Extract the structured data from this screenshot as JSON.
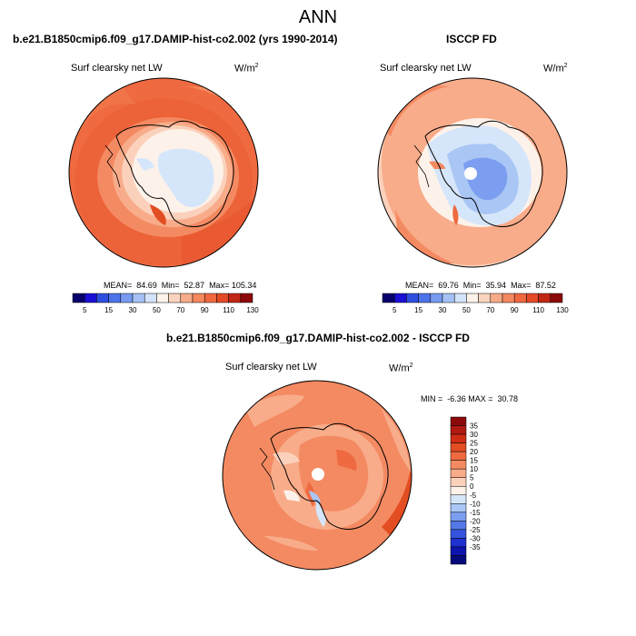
{
  "figure": {
    "title": "ANN",
    "left_panel": {
      "header": "b.e21.B1850cmip6.f09_g17.DAMIP-hist-co2.002 (yrs 1990-2014)",
      "variable": "Surf clearsky net LW",
      "units_base": "W/m",
      "units_exp": "2",
      "stats": "MEAN=  84.69  Min=  52.87  Max= 105.34",
      "stat_values": {
        "mean": 84.69,
        "min": 52.87,
        "max": 105.34
      },
      "colorbar_labels": [
        "5",
        "15",
        "30",
        "50",
        "70",
        "90",
        "110",
        "130"
      ]
    },
    "right_panel": {
      "header": "ISCCP FD",
      "variable": "Surf clearsky net LW",
      "units_base": "W/m",
      "units_exp": "2",
      "stats": "MEAN=  69.76  Min=  35.94  Max=  87.52",
      "stat_values": {
        "mean": 69.76,
        "min": 35.94,
        "max": 87.52
      },
      "colorbar_labels": [
        "5",
        "15",
        "30",
        "50",
        "70",
        "90",
        "110",
        "130"
      ]
    },
    "bottom_panel": {
      "header": "b.e21.B1850cmip6.f09_g17.DAMIP-hist-co2.002 - ISCCP FD",
      "variable": "Surf clearsky net LW",
      "units_base": "W/m",
      "units_exp": "2",
      "stats": "MIN =  -6.36 MAX =  30.78",
      "stat_values": {
        "min": -6.36,
        "max": 30.78
      },
      "colorbar_labels": [
        "35",
        "30",
        "25",
        "20",
        "15",
        "10",
        "5",
        "0",
        "-5",
        "-10",
        "-15",
        "-20",
        "-25",
        "-30",
        "-35"
      ]
    },
    "colors": {
      "hbar": [
        "#08006b",
        "#1a0fd4",
        "#2e4ee0",
        "#4d73ea",
        "#7799f0",
        "#a6c1f5",
        "#d3e3fa",
        "#fdf3ea",
        "#fbd4bd",
        "#f7ab88",
        "#f4885f",
        "#ef6840",
        "#e44a26",
        "#c22614",
        "#8c0a0a"
      ],
      "vbar": [
        "#8c0a0a",
        "#b01a10",
        "#d02d14",
        "#e34d22",
        "#ef6a40",
        "#f48a62",
        "#f8ac8a",
        "#fbd1bb",
        "#fdf2ea",
        "#d6e6fa",
        "#a9c6f5",
        "#7c9ef0",
        "#5478e8",
        "#3554de",
        "#1e32cf",
        "#0e14ae",
        "#060a7a"
      ]
    }
  }
}
